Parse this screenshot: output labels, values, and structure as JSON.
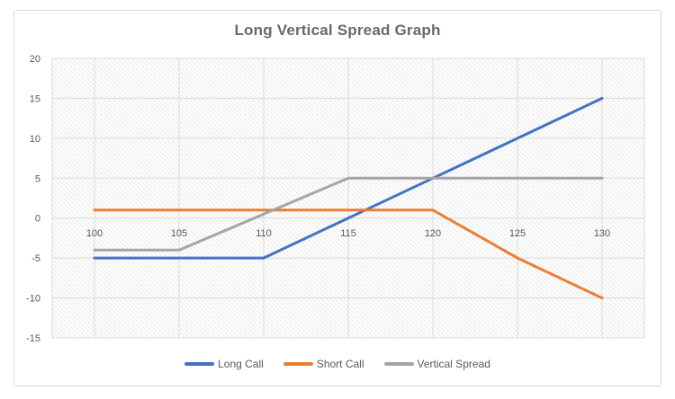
{
  "chart_data": {
    "type": "line",
    "title": "Long Vertical Spread Graph",
    "categories": [
      100,
      105,
      110,
      115,
      120,
      125,
      130
    ],
    "series": [
      {
        "name": "Long Call",
        "color": "#4472C4",
        "values": [
          -5,
          -5,
          -5,
          0,
          5,
          10,
          15
        ]
      },
      {
        "name": "Short Call",
        "color": "#ED7D31",
        "values": [
          1,
          1,
          1,
          1,
          1,
          -5,
          -10
        ]
      },
      {
        "name": "Vertical Spread",
        "color": "#A5A5A5",
        "values": [
          -4,
          -4,
          0.5,
          5,
          5,
          5,
          5
        ]
      }
    ],
    "xlabel": "",
    "ylabel": "",
    "ylim": [
      -15,
      20
    ],
    "yticks": [
      20,
      15,
      10,
      5,
      0,
      -5,
      -10,
      -15
    ],
    "grid": "horizontal and vertical major gridlines",
    "legend_position": "bottom",
    "plot_area_fill": "light-downward-diagonal-hatch",
    "colors": {
      "gridline": "#DBDBDB",
      "hatch_line": "#E6E6E6",
      "plot_background": "#FFFFFF",
      "axis_text": "#595959",
      "title_text": "#696969",
      "chart_border": "#D9D9D9"
    }
  }
}
